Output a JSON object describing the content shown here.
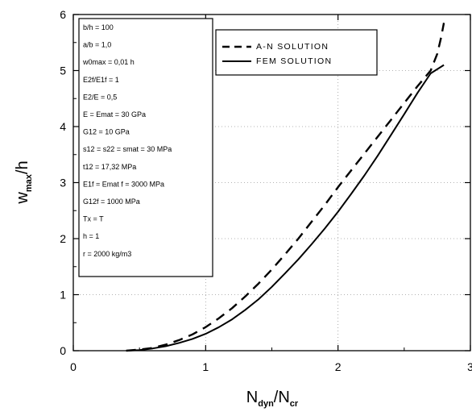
{
  "chart_data": {
    "type": "line",
    "xlabel": "N dyn/N cr",
    "xlabel_parts": {
      "n1": "N",
      "s1": "dyn",
      "slash": "/N",
      "s2": "cr"
    },
    "ylabel_parts": {
      "w": "w",
      "sub": "max",
      "tail": "/h"
    },
    "xlim": [
      0,
      3
    ],
    "ylim": [
      0,
      6
    ],
    "xticks": [
      "0",
      "1",
      "2",
      "3"
    ],
    "yticks": [
      "0",
      "1",
      "2",
      "3",
      "4",
      "5",
      "6"
    ],
    "grid": true,
    "legend_position": "top-right",
    "series": [
      {
        "name": "A-N SOLUTION",
        "style": "dashed",
        "color": "#000000",
        "x": [
          0.4,
          0.5,
          0.6,
          0.7,
          0.8,
          0.9,
          1.0,
          1.1,
          1.2,
          1.3,
          1.4,
          1.5,
          1.6,
          1.7,
          1.8,
          1.9,
          2.0,
          2.1,
          2.2,
          2.3,
          2.4,
          2.5,
          2.6,
          2.7,
          2.75,
          2.78,
          2.8
        ],
        "y": [
          0.0,
          0.02,
          0.05,
          0.11,
          0.19,
          0.29,
          0.42,
          0.58,
          0.76,
          0.97,
          1.2,
          1.45,
          1.72,
          2.0,
          2.3,
          2.6,
          2.92,
          3.22,
          3.52,
          3.82,
          4.12,
          4.42,
          4.72,
          5.0,
          5.3,
          5.6,
          5.85
        ]
      },
      {
        "name": "FEM SOLUTION",
        "style": "solid",
        "color": "#000000",
        "x": [
          0.4,
          0.5,
          0.6,
          0.7,
          0.8,
          0.9,
          1.0,
          1.1,
          1.2,
          1.3,
          1.4,
          1.5,
          1.6,
          1.7,
          1.8,
          1.9,
          2.0,
          2.1,
          2.2,
          2.3,
          2.4,
          2.5,
          2.6,
          2.7,
          2.8
        ],
        "y": [
          0.0,
          0.01,
          0.04,
          0.08,
          0.14,
          0.21,
          0.3,
          0.42,
          0.56,
          0.73,
          0.92,
          1.14,
          1.38,
          1.63,
          1.9,
          2.18,
          2.48,
          2.8,
          3.13,
          3.48,
          3.85,
          4.22,
          4.6,
          4.95,
          5.1
        ]
      }
    ],
    "param_lines": [
      "b/h = 100",
      "a/b = 1,0",
      "w0max = 0,01 h",
      "E2f/E1f = 1",
      "E2/E = 0,5",
      "E = Emat = 30 GPa",
      "G12 = 10 GPa",
      "s12 = s22 = smat = 30 MPa",
      "t12 = 17,32 MPa",
      "E1f = Emat f = 3000 MPa",
      "G12f = 1000 MPa",
      "Tx = T",
      "h = 1",
      "r = 2000 kg/m3"
    ]
  }
}
